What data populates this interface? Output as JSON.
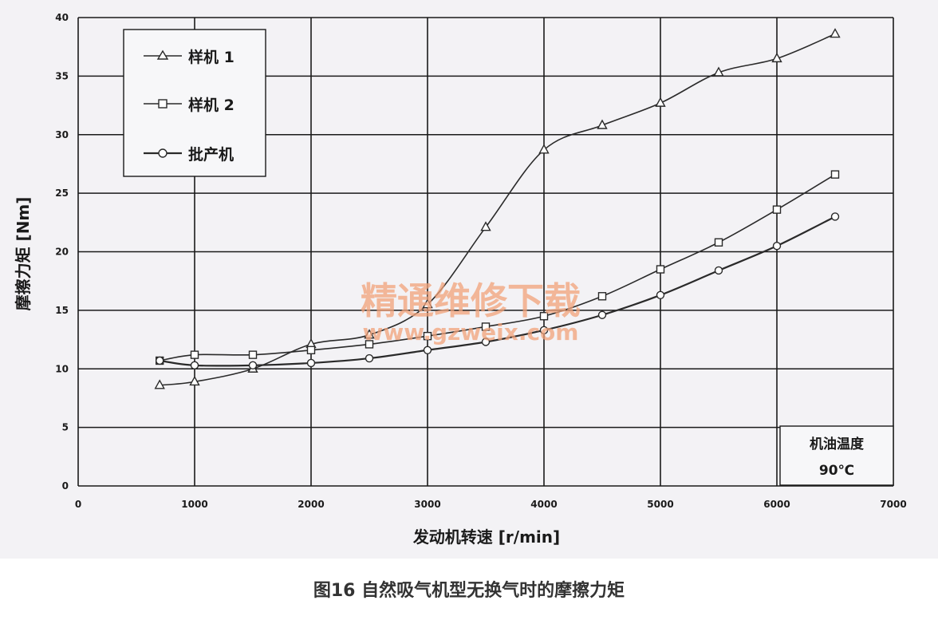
{
  "caption": "图16 自然吸气机型无换气时的摩擦力矩",
  "watermark": {
    "title": "精通维修下载",
    "url": "www.gzweix.com"
  },
  "note": {
    "line1": "机油温度",
    "line2": "90℃"
  },
  "chart_data": {
    "type": "line",
    "xlabel": "发动机转速  [r/min]",
    "ylabel": "摩擦力矩 [Nm]",
    "xlim": [
      0,
      7000
    ],
    "ylim": [
      0,
      40
    ],
    "xticks": [
      0,
      1000,
      2000,
      3000,
      4000,
      5000,
      6000,
      7000
    ],
    "yticks": [
      0,
      5,
      10,
      15,
      20,
      25,
      30,
      35,
      40
    ],
    "grid": true,
    "legend_position": "top-left",
    "series": [
      {
        "name": "样机 1",
        "marker": "triangle",
        "x": [
          700,
          1000,
          1500,
          2000,
          2500,
          3000,
          3500,
          4000,
          4500,
          5000,
          5500,
          6000,
          6500
        ],
        "y": [
          8.6,
          8.9,
          10.0,
          12.1,
          12.9,
          15.5,
          22.1,
          28.7,
          30.8,
          32.7,
          35.3,
          36.5,
          38.6
        ]
      },
      {
        "name": "样机 2",
        "marker": "square",
        "x": [
          700,
          1000,
          1500,
          2000,
          2500,
          3000,
          3500,
          4000,
          4500,
          5000,
          5500,
          6000,
          6500
        ],
        "y": [
          10.7,
          11.2,
          11.2,
          11.6,
          12.1,
          12.8,
          13.6,
          14.5,
          16.2,
          18.5,
          20.8,
          23.6,
          26.6
        ]
      },
      {
        "name": "批产机",
        "marker": "circle",
        "x": [
          700,
          1000,
          1500,
          2000,
          2500,
          3000,
          3500,
          4000,
          4500,
          5000,
          5500,
          6000,
          6500
        ],
        "y": [
          10.7,
          10.3,
          10.3,
          10.5,
          10.9,
          11.6,
          12.3,
          13.3,
          14.6,
          16.3,
          18.4,
          20.5,
          23.0
        ]
      }
    ]
  }
}
